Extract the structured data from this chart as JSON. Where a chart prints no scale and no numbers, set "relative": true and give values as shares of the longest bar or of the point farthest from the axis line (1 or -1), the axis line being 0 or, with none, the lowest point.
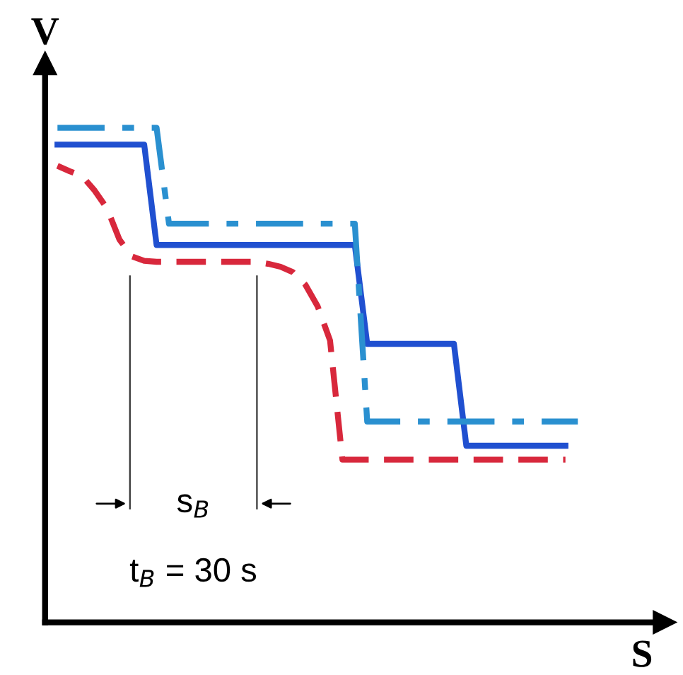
{
  "chart_data": {
    "type": "line",
    "relative": true,
    "xlabel": "S",
    "ylabel": "V",
    "categories": [
      null,
      null,
      null,
      null,
      null,
      null,
      null,
      null,
      null,
      null,
      null,
      null,
      null,
      null,
      null,
      null,
      null,
      null,
      null,
      null,
      null,
      null,
      null,
      null,
      null,
      null,
      null,
      null,
      null,
      null,
      null,
      null,
      null,
      null,
      null,
      null,
      null,
      null,
      null,
      null,
      null,
      null,
      null
    ],
    "series": [
      {
        "color": "#2050d0",
        "line_style": "solid",
        "values": [
          0.966,
          0.966,
          0.966,
          0.966,
          0.966,
          0.966,
          0.966,
          0.966,
          0.763,
          0.763,
          0.763,
          0.763,
          0.763,
          0.763,
          0.763,
          0.763,
          0.763,
          0.763,
          0.763,
          0.763,
          0.763,
          0.763,
          0.763,
          0.763,
          0.763,
          0.563,
          0.563,
          0.563,
          0.563,
          0.563,
          0.563,
          0.563,
          0.563,
          0.357,
          0.357,
          0.357,
          0.357,
          0.357,
          0.357,
          0.357,
          0.357,
          0.357,
          null
        ]
      },
      {
        "color": "#2a90d0",
        "line_style": "dashdot",
        "values": [
          1,
          1,
          1,
          1,
          1,
          1,
          1,
          1,
          1,
          0.806,
          0.806,
          0.806,
          0.806,
          0.806,
          0.806,
          0.806,
          0.806,
          0.806,
          0.806,
          0.806,
          0.806,
          0.806,
          0.806,
          0.806,
          0.806,
          0.406,
          0.406,
          0.406,
          0.406,
          0.406,
          0.406,
          0.406,
          0.406,
          0.406,
          0.406,
          0.406,
          0.406,
          0.406,
          0.406,
          0.406,
          0.406,
          0.406,
          0.406
        ]
      },
      {
        "color": "#d8283c",
        "line_style": "dashed",
        "values": [
          0.923,
          0.912,
          0.902,
          0.873,
          0.837,
          0.774,
          0.74,
          0.731,
          0.729,
          0.729,
          0.729,
          0.729,
          0.729,
          0.729,
          0.729,
          0.729,
          0.729,
          0.725,
          0.719,
          0.708,
          0.683,
          0.639,
          0.57,
          0.329,
          0.329,
          0.329,
          0.329,
          0.329,
          0.329,
          0.329,
          0.329,
          0.329,
          0.329,
          0.329,
          0.329,
          0.329,
          0.329,
          0.329,
          0.329,
          0.329,
          0.329,
          0.329,
          null
        ]
      }
    ],
    "annotations": [
      "s$_{B}$",
      "t$_{B}$ = 30 s"
    ],
    "grid": false,
    "legend": false
  }
}
